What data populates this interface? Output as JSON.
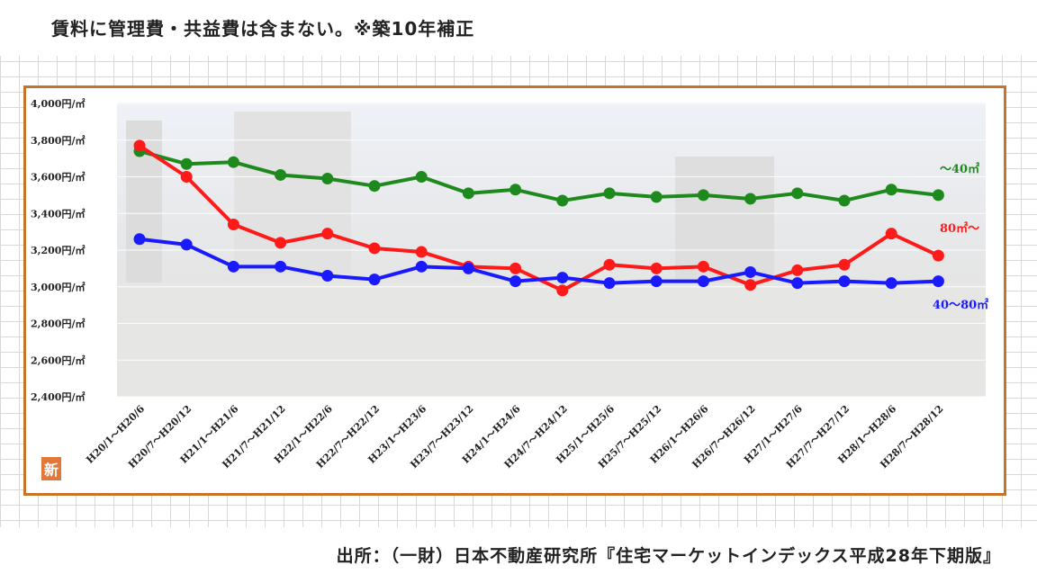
{
  "header_note": "賃料に管理費・共益費は含まない。※築10年補正",
  "source_text": "出所：（一財）日本不動産研究所『住宅マーケットインデックス平成28年下期版』",
  "badge_text": "新",
  "chart_data": {
    "type": "line",
    "y_unit": "円/㎡",
    "ylim": [
      2400,
      4000
    ],
    "y_ticks": [
      "4,000円/㎡",
      "3,800円/㎡",
      "3,600円/㎡",
      "3,400円/㎡",
      "3,200円/㎡",
      "3,000円/㎡",
      "2,800円/㎡",
      "2,600円/㎡",
      "2,400円/㎡"
    ],
    "y_tick_values": [
      4000,
      3800,
      3600,
      3400,
      3200,
      3000,
      2800,
      2600,
      2400
    ],
    "categories": [
      "H20/1～H20/6",
      "H20/7～H20/12",
      "H21/1～H21/6",
      "H21/7～H21/12",
      "H22/1～H22/6",
      "H22/7～H22/12",
      "H23/1～H23/6",
      "H23/7～H23/12",
      "H24/1～H24/6",
      "H24/7～H24/12",
      "H25/1～H25/6",
      "H25/7～H25/12",
      "H26/1～H26/6",
      "H26/7～H26/12",
      "H27/1～H27/6",
      "H27/7～H27/12",
      "H28/1～H28/6",
      "H28/7～H28/12"
    ],
    "grid": true,
    "series": [
      {
        "name": "～40㎡",
        "color": "#1e8a1e",
        "values": [
          3740,
          3670,
          3680,
          3610,
          3590,
          3550,
          3600,
          3510,
          3530,
          3470,
          3510,
          3490,
          3500,
          3480,
          3510,
          3470,
          3530,
          3500
        ]
      },
      {
        "name": "80㎡～",
        "color": "#ff1a1a",
        "values": [
          3770,
          3600,
          3340,
          3240,
          3290,
          3210,
          3190,
          3110,
          3100,
          2980,
          3120,
          3100,
          3110,
          3010,
          3090,
          3120,
          3290,
          3170
        ]
      },
      {
        "name": "40～80㎡",
        "color": "#1a1aff",
        "values": [
          3260,
          3230,
          3110,
          3110,
          3060,
          3040,
          3110,
          3100,
          3030,
          3050,
          3020,
          3030,
          3030,
          3080,
          3020,
          3030,
          3020,
          3030
        ]
      }
    ]
  }
}
